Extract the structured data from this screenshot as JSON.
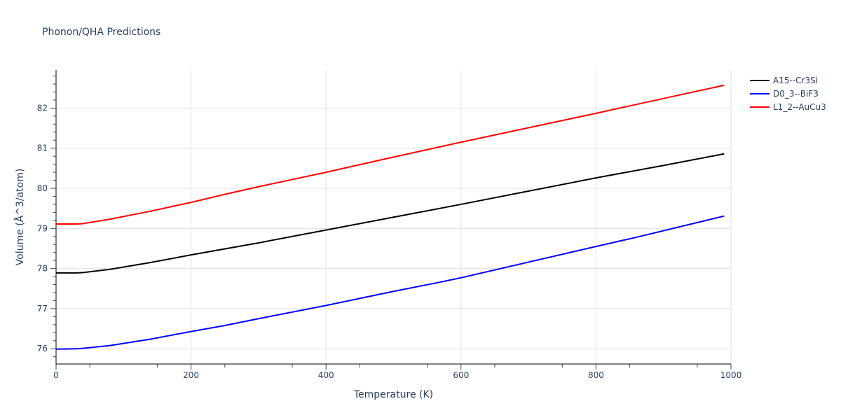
{
  "chart_data": {
    "type": "line",
    "title": "Phonon/QHA Predictions",
    "xlabel": "Temperature (K)",
    "ylabel": "Volume (Å^3/atom)",
    "xlim": [
      0,
      1000
    ],
    "ylim": [
      75.62,
      82.95
    ],
    "x_ticks": [
      "0",
      "200",
      "400",
      "600",
      "800",
      "1000"
    ],
    "y_ticks": [
      "76",
      "77",
      "78",
      "79",
      "80",
      "81",
      "82"
    ],
    "grid": true,
    "legend_position": "top-right",
    "series": [
      {
        "name": "A15--Cr3Si",
        "color": "#000000",
        "x": [
          0,
          30,
          40,
          80,
          140,
          200,
          300,
          400,
          500,
          600,
          700,
          800,
          900,
          990
        ],
        "y": [
          77.89,
          77.89,
          77.9,
          77.98,
          78.15,
          78.34,
          78.64,
          78.96,
          79.28,
          79.6,
          79.93,
          80.26,
          80.57,
          80.86
        ]
      },
      {
        "name": "D0_3--BiF3",
        "color": "#0000ff",
        "x": [
          0,
          30,
          40,
          80,
          140,
          200,
          250,
          300,
          400,
          500,
          560,
          600,
          700,
          800,
          860,
          990
        ],
        "y": [
          75.99,
          76.0,
          76.01,
          76.08,
          76.24,
          76.43,
          76.58,
          76.75,
          77.08,
          77.43,
          77.63,
          77.77,
          78.16,
          78.55,
          78.78,
          79.31
        ]
      },
      {
        "name": "L1_2--AuCu3",
        "color": "#ff0000",
        "x": [
          0,
          30,
          40,
          80,
          140,
          200,
          250,
          300,
          400,
          500,
          600,
          700,
          800,
          900,
          990
        ],
        "y": [
          79.11,
          79.11,
          79.12,
          79.23,
          79.43,
          79.65,
          79.85,
          80.04,
          80.4,
          80.78,
          81.15,
          81.51,
          81.87,
          82.24,
          82.57
        ]
      }
    ]
  }
}
